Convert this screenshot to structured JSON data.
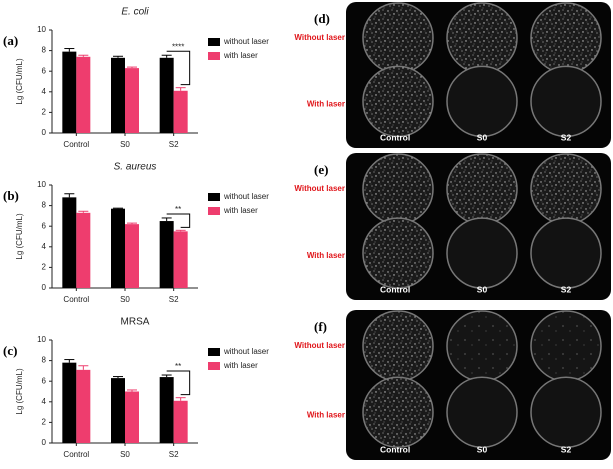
{
  "chart_data": [
    {
      "type": "bar",
      "panel": "(a)",
      "title": "E. coli",
      "italic_title": true,
      "y_label": "Lg (CFU/mL)",
      "categories": [
        "Control",
        "S0",
        "S2"
      ],
      "series": [
        {
          "name": "without laser",
          "color": "#000000",
          "values": [
            7.9,
            7.3,
            7.3
          ],
          "errors": [
            0.3,
            0.15,
            0.25
          ]
        },
        {
          "name": "with laser",
          "color": "#ee3d6e",
          "values": [
            7.4,
            6.3,
            4.1
          ],
          "errors": [
            0.15,
            0.1,
            0.3
          ]
        }
      ],
      "ylim": [
        0,
        10
      ],
      "yticks": [
        0,
        2,
        4,
        6,
        8,
        10
      ],
      "annotation": "****"
    },
    {
      "type": "bar",
      "panel": "(b)",
      "title": "S. aureus",
      "italic_title": true,
      "y_label": "Lg (CFU/mL)",
      "categories": [
        "Control",
        "S0",
        "S2"
      ],
      "series": [
        {
          "name": "without laser",
          "color": "#000000",
          "values": [
            8.8,
            7.7,
            6.5
          ],
          "errors": [
            0.35,
            0.05,
            0.3
          ]
        },
        {
          "name": "with laser",
          "color": "#ee3d6e",
          "values": [
            7.3,
            6.2,
            5.5
          ],
          "errors": [
            0.15,
            0.1,
            0.1
          ]
        }
      ],
      "ylim": [
        0,
        10
      ],
      "yticks": [
        0,
        2,
        4,
        6,
        8,
        10
      ],
      "annotation": "**"
    },
    {
      "type": "bar",
      "panel": "(c)",
      "title": "MRSA",
      "italic_title": false,
      "y_label": "Lg (CFU/mL)",
      "categories": [
        "Control",
        "S0",
        "S2"
      ],
      "series": [
        {
          "name": "without laser",
          "color": "#000000",
          "values": [
            7.8,
            6.3,
            6.4
          ],
          "errors": [
            0.3,
            0.15,
            0.2
          ]
        },
        {
          "name": "with laser",
          "color": "#ee3d6e",
          "values": [
            7.1,
            5.0,
            4.1
          ],
          "errors": [
            0.4,
            0.15,
            0.3
          ]
        }
      ],
      "ylim": [
        0,
        10
      ],
      "yticks": [
        0,
        2,
        4,
        6,
        8,
        10
      ],
      "annotation": "**"
    }
  ],
  "photo_panels": [
    {
      "label": "(d)",
      "rows": [
        "Without laser",
        "With laser"
      ],
      "columns": [
        "Control",
        "S0",
        "S2"
      ]
    },
    {
      "label": "(e)",
      "rows": [
        "Without laser",
        "With laser"
      ],
      "columns": [
        "Control",
        "S0",
        "S2"
      ]
    },
    {
      "label": "(f)",
      "rows": [
        "Without laser",
        "With laser"
      ],
      "columns": [
        "Control",
        "S0",
        "S2"
      ]
    }
  ]
}
